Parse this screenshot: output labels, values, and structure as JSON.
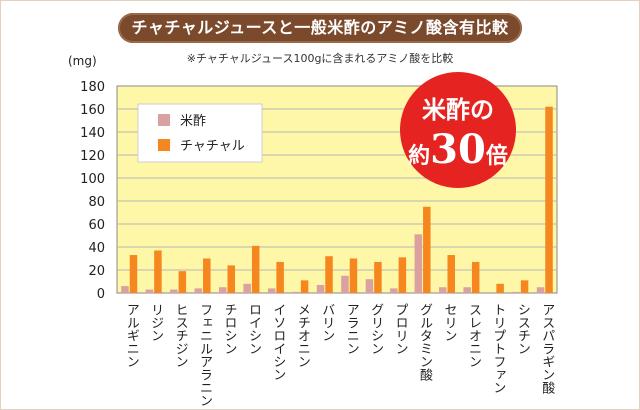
{
  "title": "チャチャルジュースと一般米酢のアミノ酸含有比較",
  "subtitle": "※チャチャルジュース100gに含まれるアミノ酸を比較",
  "badge": {
    "line1": "米酢の",
    "line2_prefix": "約",
    "line2_number": "30",
    "line2_suffix": "倍"
  },
  "colors": {
    "rice_vinegar": "#dba0a0",
    "chachar": "#f5871e",
    "plot_bg": "#fff7a8",
    "highlight_label": "#e0282d",
    "badge_bg": "#e52421",
    "title_bg": "#7b4a2c"
  },
  "chart_data": {
    "type": "bar",
    "ylabel": "(mg)",
    "ylim": [
      0,
      180
    ],
    "yticks": [
      0,
      20,
      40,
      60,
      80,
      100,
      120,
      140,
      160,
      180
    ],
    "grid": true,
    "legend_position": "top-left",
    "categories": [
      "アルギニン",
      "リジン",
      "ヒスチジン",
      "フェニルアラニン",
      "チロシン",
      "ロイシン",
      "イソロイシン",
      "メチオニン",
      "バリン",
      "アラニン",
      "グリシン",
      "プロリン",
      "グルタミン酸",
      "セリン",
      "スレオニン",
      "トリプトファン",
      "シスチン",
      "アスパラギン酸"
    ],
    "highlight_category": "アスパラギン酸",
    "series": [
      {
        "name": "米酢",
        "values": [
          6,
          3,
          3,
          4,
          5,
          8,
          4,
          1,
          7,
          15,
          12,
          4,
          51,
          5,
          5,
          0,
          1,
          5
        ]
      },
      {
        "name": "チャチャル",
        "values": [
          33,
          37,
          19,
          30,
          24,
          41,
          27,
          11,
          32,
          30,
          27,
          31,
          75,
          33,
          27,
          8,
          11,
          162
        ]
      }
    ]
  }
}
